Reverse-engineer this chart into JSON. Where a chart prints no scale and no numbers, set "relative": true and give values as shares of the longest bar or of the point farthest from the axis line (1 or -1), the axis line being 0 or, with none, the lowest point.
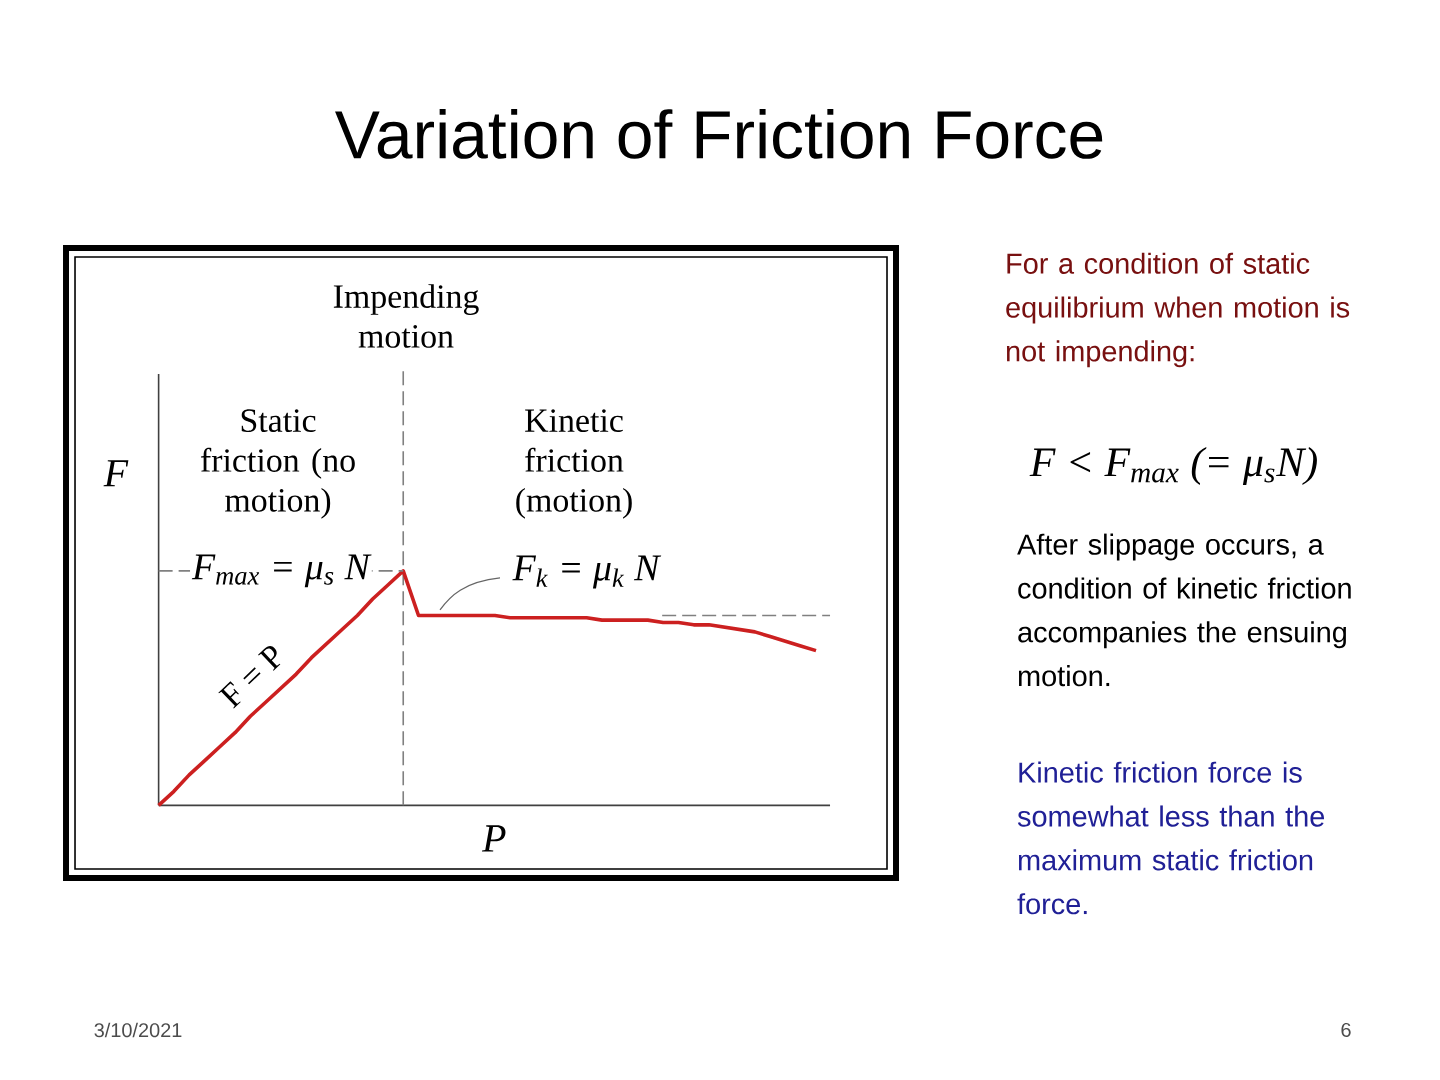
{
  "chart_data": {
    "type": "line",
    "relative": true,
    "title": "Variation of Friction Force",
    "xlabel": "P",
    "ylabel": "F",
    "categories": [
      null,
      null,
      null,
      null,
      null,
      null,
      null,
      null,
      null,
      null,
      null,
      null,
      null,
      null,
      null,
      null,
      null,
      null,
      null,
      null,
      null,
      null,
      null,
      null,
      null,
      null,
      null,
      null,
      null,
      null,
      null,
      null,
      null,
      null,
      null,
      null,
      null,
      null,
      null,
      null,
      null,
      null,
      null,
      null
    ],
    "series": [
      {
        "color": "#cc2020",
        "values": [
          0,
          0.06,
          0.13,
          0.19,
          0.25,
          0.31,
          0.38,
          0.44,
          0.5,
          0.56,
          0.63,
          0.69,
          0.75,
          0.81,
          0.88,
          0.94,
          1,
          0.81,
          0.81,
          0.81,
          0.81,
          0.81,
          0.81,
          0.8,
          0.8,
          0.8,
          0.8,
          0.8,
          0.8,
          0.79,
          0.79,
          0.79,
          0.79,
          0.78,
          0.78,
          0.77,
          0.77,
          0.76,
          0.75,
          0.74,
          0.72,
          0.7,
          0.68,
          0.66
        ]
      }
    ],
    "ref_lines": [
      {
        "axis": "y",
        "value": 1,
        "label": "F$_{max}$ = μ$_{s}$ N",
        "line_style": "dashed",
        "color": "#808080"
      },
      {
        "axis": "y",
        "value": 0.81,
        "line_style": "dashed",
        "color": "#808080"
      }
    ],
    "annotations": [
      "Impending motion",
      "Static friction (no motion)",
      "Kinetic friction (motion)",
      "F = P",
      "F$_{k}$ = μ$_{k}$ N",
      "For a condition of static equilibrium when motion is not impending:",
      "F < F$_{max}$ (= μ$_{s}$N)",
      "After slippage occurs, a condition of kinetic friction accompanies the ensuing motion.",
      "Kinetic friction force is somewhat less than the maximum static friction force.",
      "3/10/2021",
      "6"
    ]
  }
}
